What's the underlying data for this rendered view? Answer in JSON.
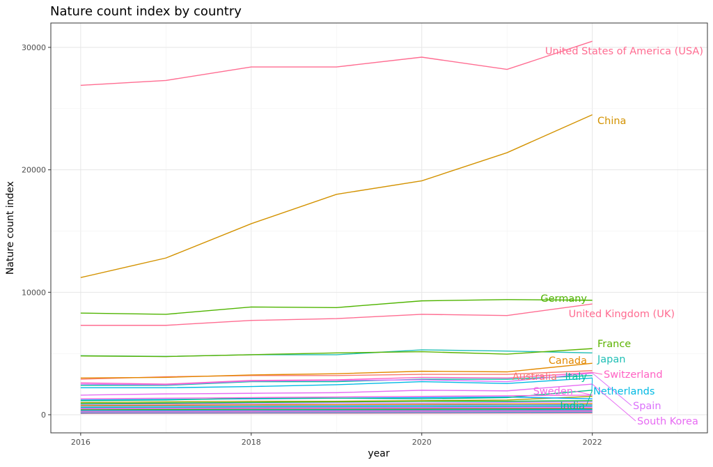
{
  "chart_data": {
    "type": "line",
    "title": "Nature count index by country",
    "xlabel": "year",
    "ylabel": "Nature count index",
    "x": [
      2016,
      2017,
      2018,
      2019,
      2020,
      2021,
      2022
    ],
    "xlim": [
      2015.65,
      2023.35
    ],
    "ylim": [
      -1480,
      31990
    ],
    "x_ticks": [
      2016,
      2018,
      2020,
      2022
    ],
    "y_ticks": [
      0,
      10000,
      20000,
      30000
    ],
    "grid": true,
    "legend": "direct labels at line ends",
    "series": [
      {
        "name": "United States of America (USA)",
        "color": "#FF6C91",
        "values": [
          26900,
          27300,
          28400,
          28400,
          29200,
          28200,
          30500
        ]
      },
      {
        "name": "China",
        "color": "#D39200",
        "values": [
          11200,
          12800,
          15600,
          18000,
          19100,
          21400,
          24500
        ]
      },
      {
        "name": "Germany",
        "color": "#4FB400",
        "values": [
          8300,
          8200,
          8800,
          8750,
          9300,
          9400,
          9350
        ]
      },
      {
        "name": "United Kingdom (UK)",
        "color": "#FF6C91",
        "values": [
          7300,
          7300,
          7700,
          7850,
          8200,
          8100,
          9050
        ]
      },
      {
        "name": "France",
        "color": "#5BB300",
        "values": [
          4800,
          4750,
          4900,
          5050,
          5150,
          4950,
          5400
        ]
      },
      {
        "name": "Japan",
        "color": "#1FBFB5",
        "values": [
          4820,
          4760,
          4900,
          4900,
          5300,
          5200,
          5050
        ]
      },
      {
        "name": "Canada",
        "color": "#E38900",
        "values": [
          3000,
          3050,
          3250,
          3350,
          3550,
          3500,
          4200
        ]
      },
      {
        "name": "Australia",
        "color": "#F8766D",
        "values": [
          2900,
          3100,
          3200,
          3200,
          3300,
          3300,
          3600
        ]
      },
      {
        "name": "Switzerland",
        "color": "#FF61C3",
        "values": [
          2600,
          2500,
          2800,
          2850,
          3050,
          3000,
          3450
        ]
      },
      {
        "name": "Spain",
        "color": "#DB72FB",
        "values": [
          2500,
          2450,
          2750,
          2800,
          2850,
          2700,
          3400
        ]
      },
      {
        "name": "Italy",
        "color": "#00BFA0",
        "values": [
          2400,
          2400,
          2700,
          2700,
          2900,
          2900,
          3200
        ]
      },
      {
        "name": "Netherlands",
        "color": "#00B9E3",
        "values": [
          2200,
          2200,
          2300,
          2450,
          2700,
          2550,
          3000
        ]
      },
      {
        "name": "South Korea",
        "color": "#E76BF3",
        "values": [
          1600,
          1700,
          1750,
          1800,
          2000,
          1950,
          2500
        ]
      },
      {
        "name": "Sweden",
        "color": "#F564E3",
        "values": [
          1300,
          1350,
          1400,
          1450,
          1500,
          1550,
          1600
        ]
      },
      {
        "name": "India",
        "color": "#00C08B",
        "values": [
          1150,
          1200,
          1350,
          1350,
          1300,
          1400,
          2000
        ]
      },
      {
        "color": "#00A9FF",
        "values": [
          1200,
          1250,
          1300,
          1350,
          1400,
          1450,
          1300
        ]
      },
      {
        "color": "#A3A500",
        "values": [
          1000,
          1050,
          1100,
          1100,
          1150,
          1200,
          1500
        ]
      },
      {
        "color": "#00BA38",
        "values": [
          900,
          950,
          1000,
          1050,
          1100,
          1100,
          1150
        ]
      },
      {
        "color": "#C77CFF",
        "values": [
          850,
          880,
          900,
          950,
          950,
          1000,
          1050
        ]
      },
      {
        "color": "#E58700",
        "values": [
          750,
          780,
          800,
          820,
          850,
          880,
          900
        ]
      },
      {
        "color": "#619CFF",
        "values": [
          700,
          720,
          750,
          760,
          780,
          800,
          820
        ]
      },
      {
        "color": "#00C0AF",
        "values": [
          600,
          620,
          650,
          660,
          680,
          700,
          720
        ]
      },
      {
        "color": "#B983FF",
        "values": [
          550,
          560,
          580,
          600,
          610,
          620,
          650
        ]
      },
      {
        "color": "#FD61D1",
        "values": [
          480,
          500,
          510,
          520,
          540,
          550,
          560
        ]
      },
      {
        "color": "#39B600",
        "values": [
          420,
          430,
          450,
          460,
          470,
          480,
          500
        ]
      },
      {
        "color": "#00B0F6",
        "values": [
          350,
          360,
          380,
          390,
          400,
          410,
          420
        ]
      },
      {
        "color": "#FF67A4",
        "values": [
          300,
          310,
          320,
          330,
          340,
          350,
          360
        ]
      },
      {
        "color": "#9590FF",
        "values": [
          250,
          260,
          270,
          280,
          290,
          300,
          310
        ]
      },
      {
        "color": "#FF62BC",
        "values": [
          200,
          210,
          220,
          230,
          240,
          250,
          260
        ]
      },
      {
        "color": "#00BCD8",
        "values": [
          150,
          160,
          170,
          175,
          180,
          190,
          200
        ]
      },
      {
        "color": "#FF6A98",
        "values": [
          100,
          110,
          115,
          120,
          125,
          130,
          140
        ]
      }
    ]
  }
}
